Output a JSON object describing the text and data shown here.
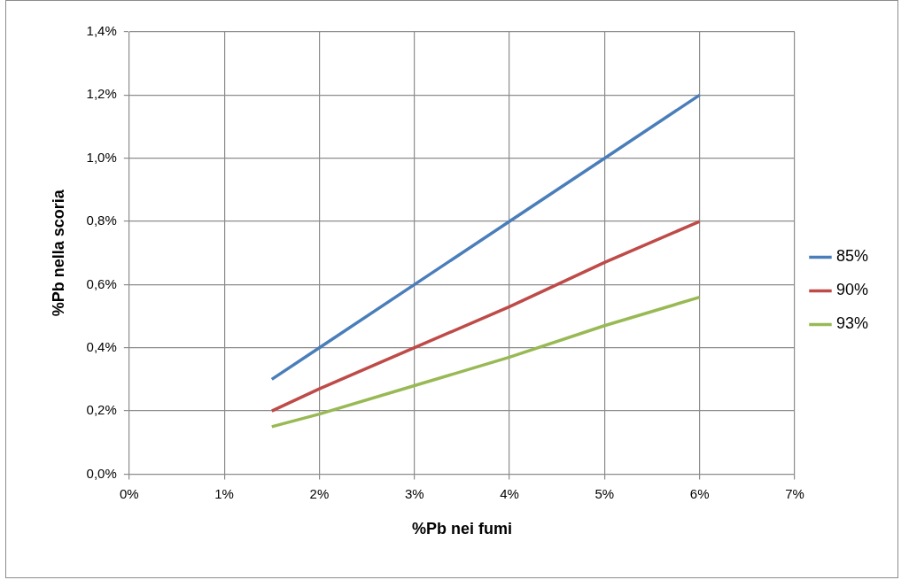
{
  "chart_data": {
    "type": "line",
    "xlabel": "%Pb nei fumi",
    "ylabel": "%Pb nella scoria",
    "x": [
      1.5,
      2,
      3,
      4,
      5,
      6
    ],
    "series": [
      {
        "name": "85%",
        "color": "#4a7ebb",
        "values": [
          0.3,
          0.4,
          0.6,
          0.8,
          1.0,
          1.2
        ]
      },
      {
        "name": "90%",
        "color": "#be4b48",
        "values": [
          0.2,
          0.27,
          0.4,
          0.53,
          0.67,
          0.8
        ]
      },
      {
        "name": "93%",
        "color": "#98b954",
        "values": [
          0.15,
          0.19,
          0.28,
          0.37,
          0.47,
          0.56
        ]
      }
    ],
    "xlim": [
      0,
      7
    ],
    "xticks": [
      {
        "value": 0,
        "label": "0%"
      },
      {
        "value": 1,
        "label": "1%"
      },
      {
        "value": 2,
        "label": "2%"
      },
      {
        "value": 3,
        "label": "3%"
      },
      {
        "value": 4,
        "label": "4%"
      },
      {
        "value": 5,
        "label": "5%"
      },
      {
        "value": 6,
        "label": "6%"
      },
      {
        "value": 7,
        "label": "7%"
      }
    ],
    "ylim": [
      0,
      1.4
    ],
    "yticks": [
      {
        "value": 0,
        "label": "0,0%"
      },
      {
        "value": 0.2,
        "label": "0,2%"
      },
      {
        "value": 0.4,
        "label": "0,4%"
      },
      {
        "value": 0.6,
        "label": "0,6%"
      },
      {
        "value": 0.8,
        "label": "0,8%"
      },
      {
        "value": 1.0,
        "label": "1,0%"
      },
      {
        "value": 1.2,
        "label": "1,2%"
      },
      {
        "value": 1.4,
        "label": "1,4%"
      }
    ],
    "grid": true,
    "legend": "right",
    "marker": "none",
    "line_style": "solid"
  }
}
